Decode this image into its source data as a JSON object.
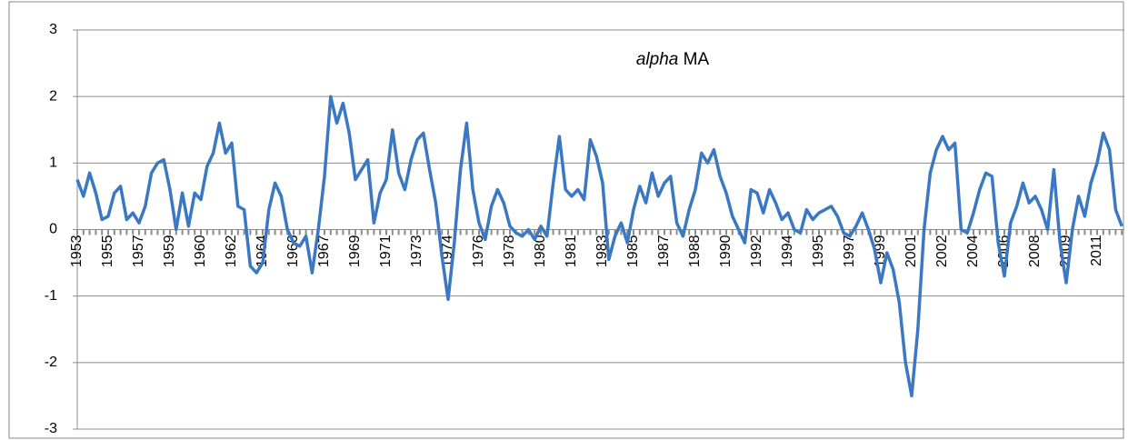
{
  "chart_data": {
    "type": "line",
    "categories": [
      "1953",
      null,
      null,
      null,
      null,
      "1955",
      null,
      null,
      null,
      null,
      "1957",
      null,
      null,
      null,
      null,
      "1959",
      null,
      null,
      null,
      null,
      "1960",
      null,
      null,
      null,
      null,
      "1962",
      null,
      null,
      null,
      null,
      "1964",
      null,
      null,
      null,
      null,
      "1966",
      null,
      null,
      null,
      null,
      "1967",
      null,
      null,
      null,
      null,
      "1969",
      null,
      null,
      null,
      null,
      "1971",
      null,
      null,
      null,
      null,
      "1973",
      null,
      null,
      null,
      null,
      "1974",
      null,
      null,
      null,
      null,
      "1976",
      null,
      null,
      null,
      null,
      "1978",
      null,
      null,
      null,
      null,
      "1980",
      null,
      null,
      null,
      null,
      "1981",
      null,
      null,
      null,
      null,
      "1983",
      null,
      null,
      null,
      null,
      "1985",
      null,
      null,
      null,
      null,
      "1987",
      null,
      null,
      null,
      null,
      "1988",
      null,
      null,
      null,
      null,
      "1990",
      null,
      null,
      null,
      null,
      "1992",
      null,
      null,
      null,
      null,
      "1994",
      null,
      null,
      null,
      null,
      "1995",
      null,
      null,
      null,
      null,
      "1997",
      null,
      null,
      null,
      null,
      "1999",
      null,
      null,
      null,
      null,
      "2001",
      null,
      null,
      null,
      null,
      "2002",
      null,
      null,
      null,
      null,
      "2004",
      null,
      null,
      null,
      null,
      "2006",
      null,
      null,
      null,
      null,
      "2008",
      null,
      null,
      null,
      null,
      "2009",
      null,
      null,
      null,
      null,
      "2011",
      null,
      null,
      null,
      null
    ],
    "series": [
      {
        "name": "alpha MA",
        "color": "#3a78c3",
        "values": [
          0.75,
          0.5,
          0.85,
          0.55,
          0.15,
          0.2,
          0.55,
          0.65,
          0.15,
          0.25,
          0.1,
          0.35,
          0.85,
          1.0,
          1.05,
          0.6,
          0.0,
          0.55,
          0.05,
          0.55,
          0.45,
          0.95,
          1.15,
          1.6,
          1.15,
          1.3,
          0.35,
          0.3,
          -0.55,
          -0.65,
          -0.5,
          0.3,
          0.7,
          0.5,
          0.0,
          -0.2,
          -0.25,
          -0.1,
          -0.65,
          0.0,
          0.8,
          2.0,
          1.6,
          1.9,
          1.45,
          0.75,
          0.9,
          1.05,
          0.1,
          0.55,
          0.75,
          1.5,
          0.85,
          0.6,
          1.05,
          1.35,
          1.45,
          0.9,
          0.4,
          -0.4,
          -1.05,
          -0.2,
          0.9,
          1.6,
          0.6,
          0.1,
          -0.15,
          0.35,
          0.6,
          0.4,
          0.05,
          -0.05,
          -0.1,
          0.0,
          -0.15,
          0.05,
          -0.1,
          0.7,
          1.4,
          0.6,
          0.5,
          0.6,
          0.45,
          1.35,
          1.1,
          0.7,
          -0.45,
          -0.1,
          0.1,
          -0.2,
          0.3,
          0.65,
          0.4,
          0.85,
          0.5,
          0.7,
          0.8,
          0.1,
          -0.1,
          0.3,
          0.6,
          1.15,
          1.0,
          1.2,
          0.8,
          0.55,
          0.2,
          0.0,
          -0.2,
          0.6,
          0.55,
          0.25,
          0.6,
          0.4,
          0.15,
          0.25,
          0.0,
          -0.05,
          0.3,
          0.15,
          0.25,
          0.3,
          0.35,
          0.2,
          -0.05,
          -0.1,
          0.05,
          0.25,
          0.0,
          -0.3,
          -0.8,
          -0.35,
          -0.6,
          -1.1,
          -2.0,
          -2.5,
          -1.5,
          0.0,
          0.85,
          1.2,
          1.4,
          1.2,
          1.3,
          0.0,
          -0.05,
          0.25,
          0.6,
          0.85,
          0.8,
          -0.2,
          -0.7,
          0.1,
          0.35,
          0.7,
          0.4,
          0.5,
          0.3,
          0.0,
          0.9,
          -0.2,
          -0.8,
          0.0,
          0.5,
          0.2,
          0.7,
          1.0,
          1.45,
          1.2,
          0.3,
          0.05
        ]
      }
    ],
    "ylim": [
      -3,
      3
    ],
    "yticks": [
      -3,
      -2,
      -1,
      0,
      1,
      2,
      3
    ],
    "grid": true
  }
}
